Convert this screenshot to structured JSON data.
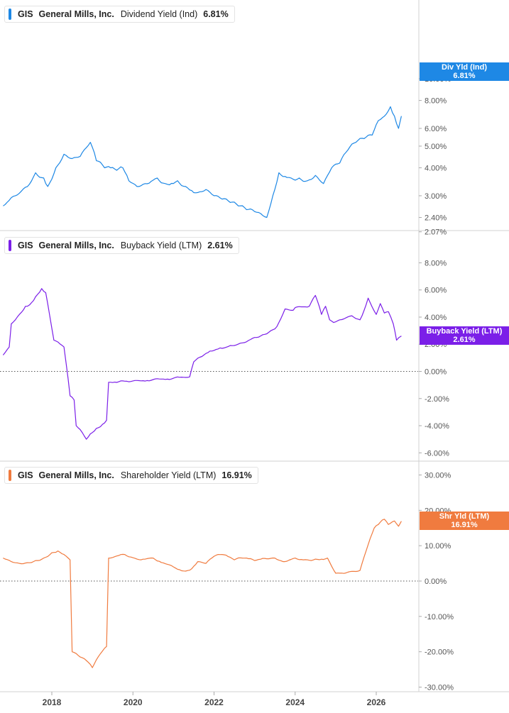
{
  "colors": {
    "dividend": "#1e88e5",
    "buyback": "#7b1fe8",
    "shareholder": "#f07b3f",
    "grid_divider": "#d0d0d0",
    "zero_line": "#555555"
  },
  "x_axis": {
    "labels": [
      "2018",
      "2020",
      "2022",
      "2024",
      "2026"
    ]
  },
  "panels": [
    {
      "id": "dividend",
      "legend": {
        "ticker": "GIS",
        "company": "General Mills, Inc.",
        "metric": "Dividend Yield (Ind)",
        "value": "6.81%"
      },
      "tag": {
        "line1": "Div Yld (Ind)",
        "line2": "6.81%"
      },
      "y_ticks": [
        "10.00%",
        "8.00%",
        "6.00%",
        "5.00%",
        "4.00%",
        "3.00%",
        "2.40%",
        "2.07%"
      ]
    },
    {
      "id": "buyback",
      "legend": {
        "ticker": "GIS",
        "company": "General Mills, Inc.",
        "metric": "Buyback Yield (LTM)",
        "value": "2.61%"
      },
      "tag": {
        "line1": "Buyback Yield (LTM)",
        "line2": "2.61%"
      },
      "y_ticks": [
        "8.00%",
        "6.00%",
        "4.00%",
        "2.00%",
        "0.00%",
        "-2.00%",
        "-4.00%",
        "-6.00%"
      ]
    },
    {
      "id": "shareholder",
      "legend": {
        "ticker": "GIS",
        "company": "General Mills, Inc.",
        "metric": "Shareholder Yield (LTM)",
        "value": "16.91%"
      },
      "tag": {
        "line1": "Shr Yld (LTM)",
        "line2": "16.91%"
      },
      "y_ticks": [
        "30.00%",
        "20.00%",
        "10.00%",
        "0.00%",
        "-10.00%",
        "-20.00%",
        "-30.00%"
      ]
    }
  ],
  "chart_data": [
    {
      "type": "line",
      "scale": "log",
      "ylim": [
        2.07,
        11.5
      ],
      "series": [
        {
          "name": "Dividend Yield (Ind)",
          "x": [
            2016.8,
            2017.1,
            2017.4,
            2017.6,
            2017.8,
            2017.9,
            2018.1,
            2018.3,
            2018.5,
            2018.7,
            2018.95,
            2019.1,
            2019.3,
            2019.6,
            2019.75,
            2019.9,
            2020.1,
            2020.3,
            2020.6,
            2020.8,
            2021.1,
            2021.3,
            2021.6,
            2021.8,
            2022.0,
            2022.2,
            2022.4,
            2022.6,
            2022.8,
            2023.0,
            2023.2,
            2023.3,
            2023.45,
            2023.6,
            2023.9,
            2024.1,
            2024.3,
            2024.5,
            2024.7,
            2024.9,
            2025.1,
            2025.3,
            2025.5,
            2025.7,
            2025.9,
            2026.05,
            2026.2,
            2026.35,
            2026.45,
            2026.55,
            2026.62
          ],
          "y": [
            2.7,
            3.0,
            3.3,
            3.8,
            3.6,
            3.3,
            4.0,
            4.6,
            4.4,
            4.5,
            5.2,
            4.3,
            4.0,
            3.9,
            4.0,
            3.5,
            3.3,
            3.4,
            3.6,
            3.4,
            3.5,
            3.3,
            3.1,
            3.2,
            3.0,
            2.9,
            2.8,
            2.7,
            2.6,
            2.55,
            2.45,
            2.4,
            3.0,
            3.8,
            3.6,
            3.6,
            3.5,
            3.7,
            3.4,
            4.0,
            4.2,
            4.8,
            5.2,
            5.4,
            5.6,
            6.5,
            6.8,
            7.5,
            6.8,
            6.0,
            6.81
          ]
        }
      ]
    },
    {
      "type": "line",
      "ylim": [
        -6.5,
        11.5
      ],
      "series": [
        {
          "name": "Buyback Yield (LTM)",
          "x": [
            2016.8,
            2016.95,
            2017.0,
            2017.2,
            2017.35,
            2017.45,
            2017.6,
            2017.75,
            2017.8,
            2017.85,
            2018.05,
            2018.3,
            2018.45,
            2018.55,
            2018.6,
            2018.75,
            2018.85,
            2018.95,
            2019.1,
            2019.25,
            2019.35,
            2019.4,
            2019.7,
            2020.0,
            2020.5,
            2021.0,
            2021.4,
            2021.5,
            2021.7,
            2021.95,
            2022.2,
            2022.45,
            2022.7,
            2023.0,
            2023.2,
            2023.4,
            2023.55,
            2023.75,
            2023.95,
            2024.0,
            2024.35,
            2024.5,
            2024.65,
            2024.75,
            2024.85,
            2024.95,
            2025.1,
            2025.4,
            2025.6,
            2025.7,
            2025.8,
            2026.0,
            2026.1,
            2026.2,
            2026.3,
            2026.42,
            2026.5,
            2026.62
          ],
          "y": [
            1.2,
            1.8,
            3.5,
            4.2,
            4.8,
            4.9,
            5.5,
            6.1,
            5.9,
            5.8,
            2.3,
            1.8,
            -1.8,
            -2.1,
            -4.0,
            -4.5,
            -5.0,
            -4.6,
            -4.2,
            -3.9,
            -3.6,
            -0.8,
            -0.7,
            -0.7,
            -0.6,
            -0.5,
            -0.4,
            0.7,
            1.1,
            1.5,
            1.7,
            1.9,
            2.1,
            2.5,
            2.7,
            3.0,
            3.3,
            4.6,
            4.5,
            4.7,
            4.8,
            5.6,
            4.2,
            4.8,
            3.8,
            3.6,
            3.8,
            4.1,
            3.8,
            4.5,
            5.4,
            4.2,
            5.0,
            4.3,
            4.4,
            3.5,
            2.3,
            2.61
          ]
        }
      ]
    },
    {
      "type": "line",
      "ylim": [
        -30,
        30
      ],
      "series": [
        {
          "name": "Shareholder Yield (LTM)",
          "x": [
            2016.8,
            2017.0,
            2017.2,
            2017.4,
            2017.6,
            2017.8,
            2018.0,
            2018.15,
            2018.3,
            2018.45,
            2018.5,
            2018.7,
            2018.9,
            2019.0,
            2019.2,
            2019.35,
            2019.4,
            2019.8,
            2020.1,
            2020.5,
            2021.0,
            2021.3,
            2021.45,
            2021.6,
            2021.8,
            2022.0,
            2022.2,
            2022.5,
            2022.7,
            2023.0,
            2023.3,
            2023.5,
            2023.7,
            2024.0,
            2024.3,
            2024.5,
            2024.8,
            2025.0,
            2025.3,
            2025.6,
            2025.75,
            2025.95,
            2026.05,
            2026.2,
            2026.3,
            2026.45,
            2026.55,
            2026.62
          ],
          "y": [
            6.5,
            5.5,
            5.0,
            5.2,
            5.8,
            6.5,
            8.0,
            8.5,
            7.5,
            6.0,
            -20.0,
            -21.5,
            -23.0,
            -24.5,
            -20.5,
            -18.5,
            6.5,
            7.5,
            6.2,
            6.5,
            4.0,
            2.8,
            3.5,
            5.5,
            5.0,
            7.0,
            7.5,
            6.0,
            6.5,
            5.8,
            6.3,
            6.5,
            5.5,
            6.5,
            6.0,
            6.2,
            6.5,
            2.2,
            2.5,
            3.0,
            8.5,
            15.0,
            16.0,
            17.5,
            16.0,
            17.0,
            15.5,
            16.91
          ]
        }
      ]
    }
  ]
}
